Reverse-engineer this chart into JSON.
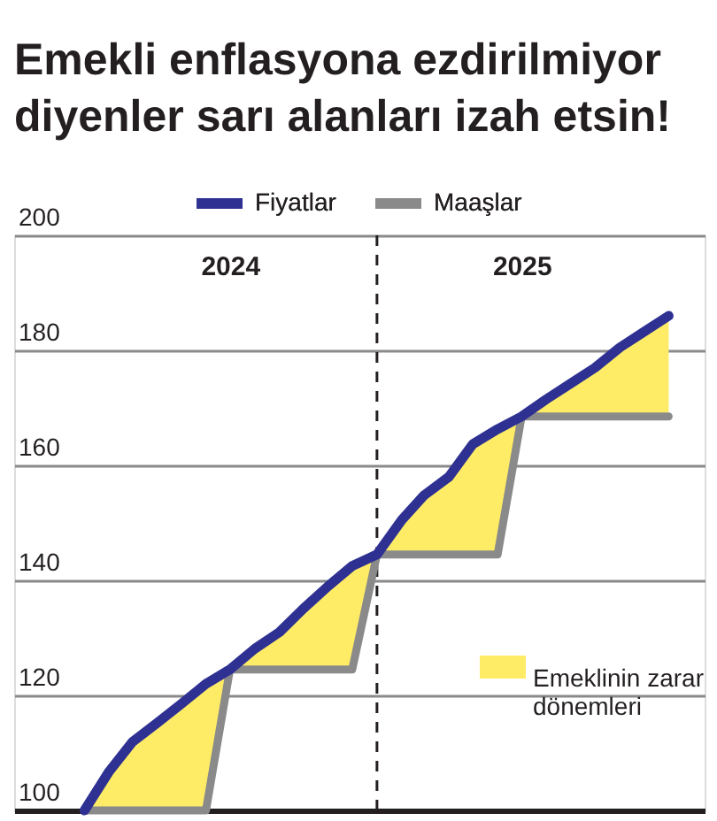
{
  "chart_data": {
    "type": "line",
    "title": "Emekli enflasyona ezdirilmiyor\ndiyenler sarı alanları izah etsin!",
    "x": [
      "2024-01",
      "2024-02",
      "2024-03",
      "2024-04",
      "2024-05",
      "2024-06",
      "2024-07",
      "2024-08",
      "2024-09",
      "2024-10",
      "2024-11",
      "2024-12",
      "2025-01",
      "2025-02",
      "2025-03",
      "2025-04",
      "2025-05",
      "2025-06",
      "2025-07",
      "2025-08",
      "2025-09",
      "2025-10",
      "2025-11",
      "2025-12",
      "2026-01"
    ],
    "series": [
      {
        "name": "Fiyatlar",
        "color": "#2e3192",
        "values": [
          100,
          106.8,
          111.9,
          115.2,
          118.5,
          122,
          124.5,
          128.1,
          131,
          135.1,
          139,
          142.5,
          144.5,
          150.5,
          154.8,
          158,
          163.7,
          166.3,
          168.5,
          171.5,
          174.3,
          177,
          180.5,
          183.2,
          186
        ]
      },
      {
        "name": "Maaşlar",
        "color": "#8a8a8a",
        "values": [
          100,
          100,
          100,
          100,
          100,
          100,
          124.5,
          124.5,
          124.5,
          124.5,
          124.5,
          124.5,
          144.5,
          144.5,
          144.5,
          144.5,
          144.5,
          144.5,
          168.5,
          168.5,
          168.5,
          168.5,
          168.5,
          168.5,
          168.5
        ]
      },
      {
        "name": "Emeklinin zarar dönemleri",
        "type": "area",
        "color": "#ffec66",
        "values": [
          null,
          null,
          null,
          null,
          null,
          null,
          null,
          null,
          null,
          null,
          null,
          null,
          null,
          null,
          null,
          null,
          null,
          null,
          null,
          null,
          null,
          null,
          null,
          null,
          null
        ],
        "upper": [
          100,
          106.8,
          111.9,
          115.2,
          118.5,
          122,
          124.5,
          128.1,
          131,
          135.1,
          139,
          142.5,
          144.5,
          150.5,
          154.8,
          158,
          163.7,
          166.3,
          168.5,
          171.5,
          174.3,
          177,
          180.5,
          183.2,
          186
        ],
        "lower": [
          100,
          100,
          100,
          100,
          100,
          100,
          124.5,
          124.5,
          124.5,
          124.5,
          124.5,
          124.5,
          144.5,
          144.5,
          144.5,
          144.5,
          144.5,
          144.5,
          168.5,
          168.5,
          168.5,
          168.5,
          168.5,
          168.5,
          168.5
        ]
      }
    ],
    "xlim": [
      "2023-10-05",
      "2026-02-15"
    ],
    "xticks": [
      {
        "value": "2024-07",
        "label": "2024"
      },
      {
        "value": "2025-07",
        "label": "2025"
      }
    ],
    "ylim": [
      100,
      200
    ],
    "yticks": [
      100,
      120,
      140,
      160,
      180,
      200
    ],
    "ref_lines": [
      {
        "axis": "x",
        "value": "2025-01",
        "color": "#231f20",
        "line_style": "dashed"
      }
    ],
    "grid": "y",
    "legend": "top",
    "line_style": "solid"
  }
}
